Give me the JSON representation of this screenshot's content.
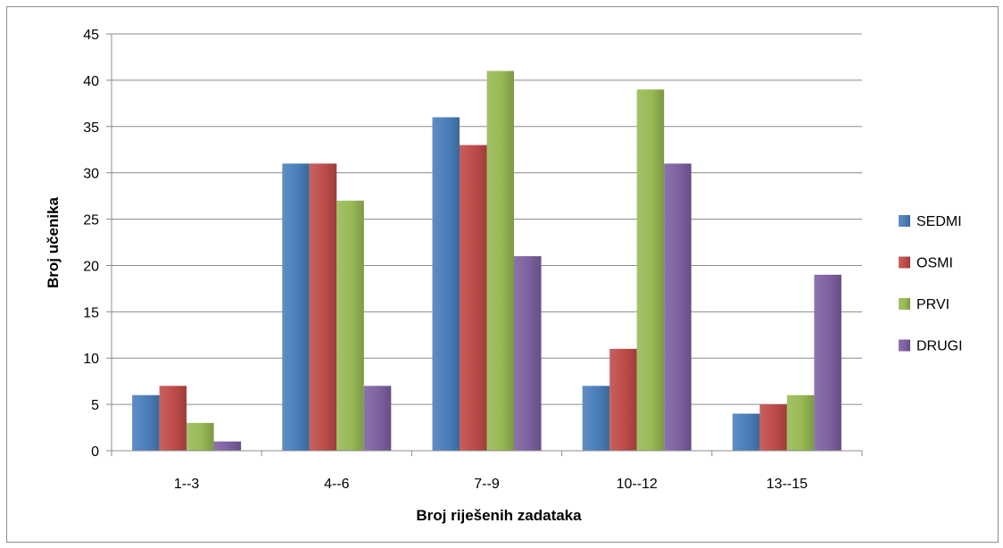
{
  "chart_data": {
    "type": "bar",
    "title": "",
    "xlabel": "Broj riješenih zadataka",
    "ylabel": "Broj učenika",
    "ylim": [
      0,
      45
    ],
    "yticks": [
      0,
      5,
      10,
      15,
      20,
      25,
      30,
      35,
      40,
      45
    ],
    "grid": true,
    "legend_position": "right",
    "categories": [
      "1--3",
      "4--6",
      "7--9",
      "10--12",
      "13--15"
    ],
    "series": [
      {
        "name": "SEDMI",
        "color": "#4a7ebb",
        "values": [
          6,
          31,
          36,
          7,
          4
        ]
      },
      {
        "name": "OSMI",
        "color": "#be4b48",
        "values": [
          7,
          31,
          33,
          11,
          5
        ]
      },
      {
        "name": "PRVI",
        "color": "#98b954",
        "values": [
          3,
          27,
          41,
          39,
          6
        ]
      },
      {
        "name": "DRUGI",
        "color": "#7d60a0",
        "values": [
          1,
          7,
          21,
          31,
          19
        ]
      }
    ]
  }
}
